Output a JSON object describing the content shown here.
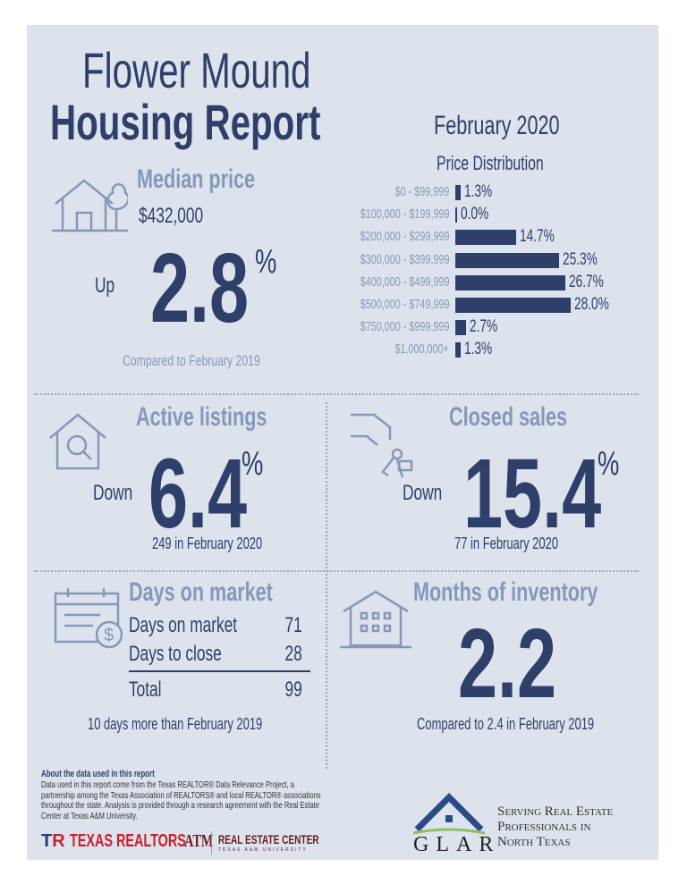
{
  "title": {
    "line1": "Flower Mound",
    "line2": "Housing Report"
  },
  "period": "February 2020",
  "median": {
    "heading": "Median price",
    "price": "$432,000",
    "direction": "Up",
    "change": "2.8",
    "unit": "%",
    "note": "Compared to February 2019",
    "icon": "house-tree-icon"
  },
  "chart_data": {
    "type": "bar",
    "title": "Price Distribution",
    "orientation": "horizontal",
    "categories": [
      "$0 - $99,999",
      "$100,000 - $199,999",
      "$200,000 - $299,999",
      "$300,000 - $399,999",
      "$400,000 - $499,999",
      "$500,000 - $749,999",
      "$750,000 - $999,999",
      "$1,000,000+"
    ],
    "values": [
      1.3,
      0.0,
      14.7,
      25.3,
      26.7,
      28.0,
      2.7,
      1.3
    ],
    "labels": [
      "1.3%",
      "0.0%",
      "14.7%",
      "25.3%",
      "26.7%",
      "28.0%",
      "2.7%",
      "1.3%"
    ],
    "color": "#2e3f6a"
  },
  "active": {
    "heading": "Active listings",
    "direction": "Down",
    "change": "6.4",
    "unit": "%",
    "note": "249 in February 2020",
    "icon": "house-search-icon"
  },
  "closed": {
    "heading": "Closed sales",
    "direction": "Down",
    "change": "15.4",
    "unit": "%",
    "note": "77 in February 2020",
    "icon": "hand-keys-icon"
  },
  "dom": {
    "heading": "Days on market",
    "rows": [
      {
        "label": "Days on market",
        "value": "71"
      },
      {
        "label": "Days to close",
        "value": "28"
      }
    ],
    "total_label": "Total",
    "total_value": "99",
    "note": "10 days more than February 2019",
    "icon": "calendar-dollar-icon"
  },
  "inventory": {
    "heading": "Months of inventory",
    "value": "2.2",
    "note": "Compared to 2.4 in February 2019",
    "icon": "building-icon"
  },
  "about": {
    "heading": "About the data used in this report",
    "text": "Data used in this report come from the Texas REALTOR® Data Relevance Project, a partnership among the Texas Association of REALTORS® and local REALTOR® associations throughout the state. Analysis is provided through a research agreement with the Real Estate Center at Texas A&M University."
  },
  "logos": {
    "texas_realtors": "TEXAS REALTORS",
    "atm": "ATM",
    "rec": "REAL ESTATE CENTER",
    "rec_sub": "TEXAS A&M UNIVERSITY",
    "glar": "GLAR",
    "glar_tagline": [
      "Serving Real Estate",
      "Professionals in",
      "North Texas"
    ]
  },
  "colors": {
    "navy": "#2e3f6a",
    "light": "#8598ba",
    "background": "#dde3ec"
  }
}
